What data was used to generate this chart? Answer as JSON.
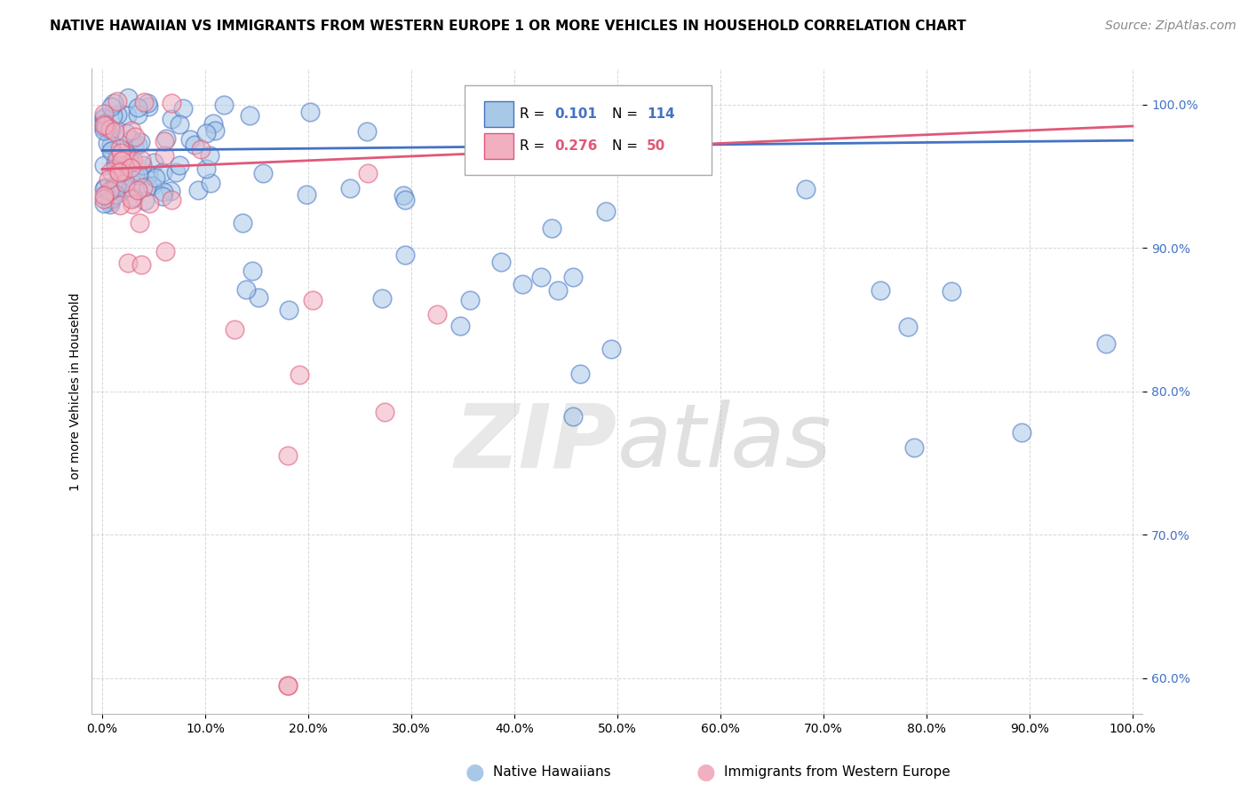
{
  "title": "NATIVE HAWAIIAN VS IMMIGRANTS FROM WESTERN EUROPE 1 OR MORE VEHICLES IN HOUSEHOLD CORRELATION CHART",
  "source": "Source: ZipAtlas.com",
  "ylabel": "1 or more Vehicles in Household",
  "xlim": [
    -0.01,
    1.01
  ],
  "ylim": [
    0.575,
    1.025
  ],
  "xticks": [
    0.0,
    0.1,
    0.2,
    0.3,
    0.4,
    0.5,
    0.6,
    0.7,
    0.8,
    0.9,
    1.0
  ],
  "xticklabels": [
    "0.0%",
    "10.0%",
    "20.0%",
    "30.0%",
    "40.0%",
    "50.0%",
    "60.0%",
    "70.0%",
    "80.0%",
    "90.0%",
    "100.0%"
  ],
  "yticks": [
    0.6,
    0.7,
    0.8,
    0.9,
    1.0
  ],
  "yticklabels": [
    "60.0%",
    "70.0%",
    "80.0%",
    "90.0%",
    "100.0%"
  ],
  "blue_R": 0.101,
  "blue_N": 114,
  "pink_R": 0.276,
  "pink_N": 50,
  "blue_color": "#a8c8e8",
  "pink_color": "#f0b0c0",
  "blue_line_color": "#4472c4",
  "pink_line_color": "#e05878",
  "legend_blue_label": "Native Hawaiians",
  "legend_pink_label": "Immigrants from Western Europe",
  "title_fontsize": 11,
  "source_fontsize": 10,
  "axis_fontsize": 10,
  "tick_fontsize": 10,
  "watermark": "ZIPatlas",
  "blue_trend_x0": 0.0,
  "blue_trend_y0": 0.968,
  "blue_trend_x1": 1.0,
  "blue_trend_y1": 0.975,
  "pink_trend_x0": 0.0,
  "pink_trend_y0": 0.955,
  "pink_trend_x1": 1.0,
  "pink_trend_y1": 0.985
}
